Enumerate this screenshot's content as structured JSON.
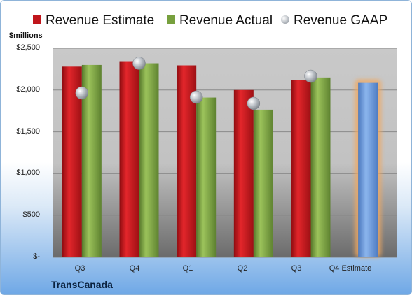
{
  "chart_data": {
    "type": "bar",
    "unit_label": "$millions",
    "categories": [
      "Q3",
      "Q4",
      "Q1",
      "Q2",
      "Q3",
      "Q4 Estimate"
    ],
    "series": [
      {
        "name": "Revenue Estimate",
        "type": "bar",
        "color": "#c0151b",
        "values": [
          2280,
          2345,
          2295,
          2000,
          2120,
          null
        ]
      },
      {
        "name": "Revenue Actual",
        "type": "bar",
        "color": "#77a03e",
        "values": [
          2300,
          2320,
          1910,
          1765,
          2150,
          null
        ]
      },
      {
        "name": "Revenue GAAP",
        "type": "scatter",
        "color": "#b9bec4",
        "values": [
          1965,
          2320,
          1915,
          1840,
          2165,
          null
        ]
      },
      {
        "name": "",
        "type": "bar",
        "color": "#6b9be0",
        "highlight": "#f0a860",
        "values": [
          null,
          null,
          null,
          null,
          null,
          2085
        ]
      }
    ],
    "ytick_labels": [
      "$-",
      "$500",
      "$1,000",
      "$1,500",
      "$2,000",
      "$2,500"
    ],
    "yticks": [
      0,
      500,
      1000,
      1500,
      2000,
      2500
    ],
    "ylim": [
      0,
      2500
    ],
    "grid": true,
    "legend_position": "top"
  },
  "company": "TransCanada"
}
